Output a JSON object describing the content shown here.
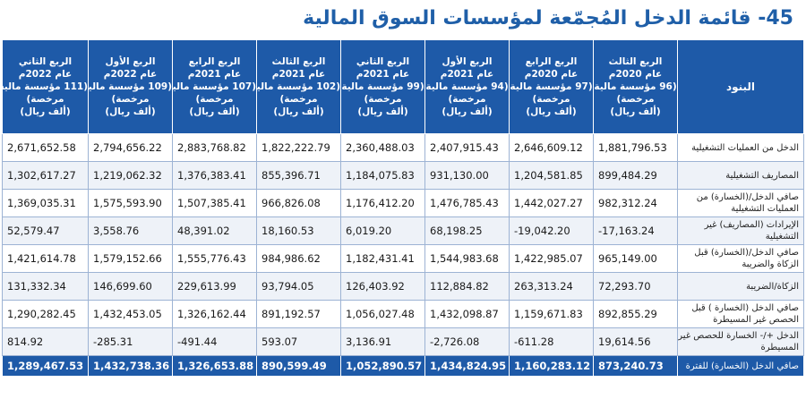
{
  "title": "45- قائمة الدخل المُجمّعة لمؤسسات السوق المالية",
  "header": {
    "label_column": "البنود",
    "columns": [
      {
        "l1": "الربع الثالث",
        "l2": "عام 2020م",
        "l3": "(96 مؤسسة مالية",
        "l4": "مرخصة)",
        "l5": "(ألف ريال)"
      },
      {
        "l1": "الربع الرابع",
        "l2": "عام 2020م",
        "l3": "(97 مؤسسة مالية",
        "l4": "مرخصة)",
        "l5": "(ألف ريال)"
      },
      {
        "l1": "الربع الأول",
        "l2": "عام 2021م",
        "l3": "(94 مؤسسة مالية",
        "l4": "مرخصة)",
        "l5": "(ألف ريال)"
      },
      {
        "l1": "الربع الثاني",
        "l2": "عام 2021م",
        "l3": "(99 مؤسسة مالية",
        "l4": "مرخصة)",
        "l5": "(ألف ريال)"
      },
      {
        "l1": "الربع الثالث",
        "l2": "عام 2021م",
        "l3": "(102 مؤسسة مالية",
        "l4": "مرخصة)",
        "l5": "(ألف ريال)"
      },
      {
        "l1": "الربع الرابع",
        "l2": "عام 2021م",
        "l3": "(107 مؤسسة مالية",
        "l4": "مرخصة)",
        "l5": "(ألف ريال)"
      },
      {
        "l1": "الربع الأول",
        "l2": "عام 2022م",
        "l3": "(109 مؤسسة مالية",
        "l4": "مرخصة)",
        "l5": "(ألف ريال)"
      },
      {
        "l1": "الربع الثاني",
        "l2": "عام 2022م",
        "l3": "(111 مؤسسة مالية",
        "l4": "مرخصة)",
        "l5": "(ألف ريال)"
      }
    ]
  },
  "rows": [
    {
      "label": "الدخل من العمليات التشغيلية",
      "values": [
        "1,881,796.53",
        "2,646,609.12",
        "2,407,915.43",
        "2,360,488.03",
        "1,822,222.79",
        "2,883,768.82",
        "2,794,656.22",
        "2,671,652.58"
      ]
    },
    {
      "label": "المصاريف التشغيلية",
      "values": [
        "899,484.29",
        "1,204,581.85",
        "931,130.00",
        "1,184,075.83",
        "855,396.71",
        "1,376,383.41",
        "1,219,062.32",
        "1,302,617.27"
      ]
    },
    {
      "label": "صافي الدخل/(الخسارة) من العمليات التشغيلية",
      "values": [
        "982,312.24",
        "1,442,027.27",
        "1,476,785.43",
        "1,176,412.20",
        "966,826.08",
        "1,507,385.41",
        "1,575,593.90",
        "1,369,035.31"
      ]
    },
    {
      "label": "الإيرادات (المصاريف) غير التشغيلية",
      "values": [
        "-17,163.24",
        "-19,042.20",
        "68,198.25",
        "6,019.20",
        "18,160.53",
        "48,391.02",
        "3,558.76",
        "52,579.47"
      ]
    },
    {
      "label": "صافي الدخل/(الخسارة) قبل الزكاة والضريبة",
      "values": [
        "965,149.00",
        "1,422,985.07",
        "1,544,983.68",
        "1,182,431.41",
        "984,986.62",
        "1,555,776.43",
        "1,579,152.66",
        "1,421,614.78"
      ]
    },
    {
      "label": "الزكاة/الضريبة",
      "values": [
        "72,293.70",
        "263,313.24",
        "112,884.82",
        "126,403.92",
        "93,794.05",
        "229,613.99",
        "146,699.60",
        "131,332.34"
      ]
    },
    {
      "label": "صافي الدخل (الخسارة ) قبل الحصص غير المسيطرة",
      "values": [
        "892,855.29",
        "1,159,671.83",
        "1,432,098.87",
        "1,056,027.48",
        "891,192.57",
        "1,326,162.44",
        "1,432,453.05",
        "1,290,282.45"
      ]
    },
    {
      "label": "الدخل +/- الخسارة للحصص غير المسيطرة",
      "values": [
        "19,614.56",
        "-611.28",
        "-2,726.08",
        "3,136.91",
        "593.07",
        "-491.44",
        "-285.31",
        "814.92"
      ]
    }
  ],
  "total": {
    "label": "صافي الدخل (الخسارة) للفترة",
    "values": [
      "873,240.73",
      "1,160,283.12",
      "1,434,824.95",
      "1,052,890.57",
      "890,599.49",
      "1,326,653.88",
      "1,432,738.36",
      "1,289,467.53"
    ]
  },
  "colors": {
    "header_bg": "#1e5aa8",
    "title": "#1f5fa8",
    "row_alt": "#eef2f8"
  }
}
